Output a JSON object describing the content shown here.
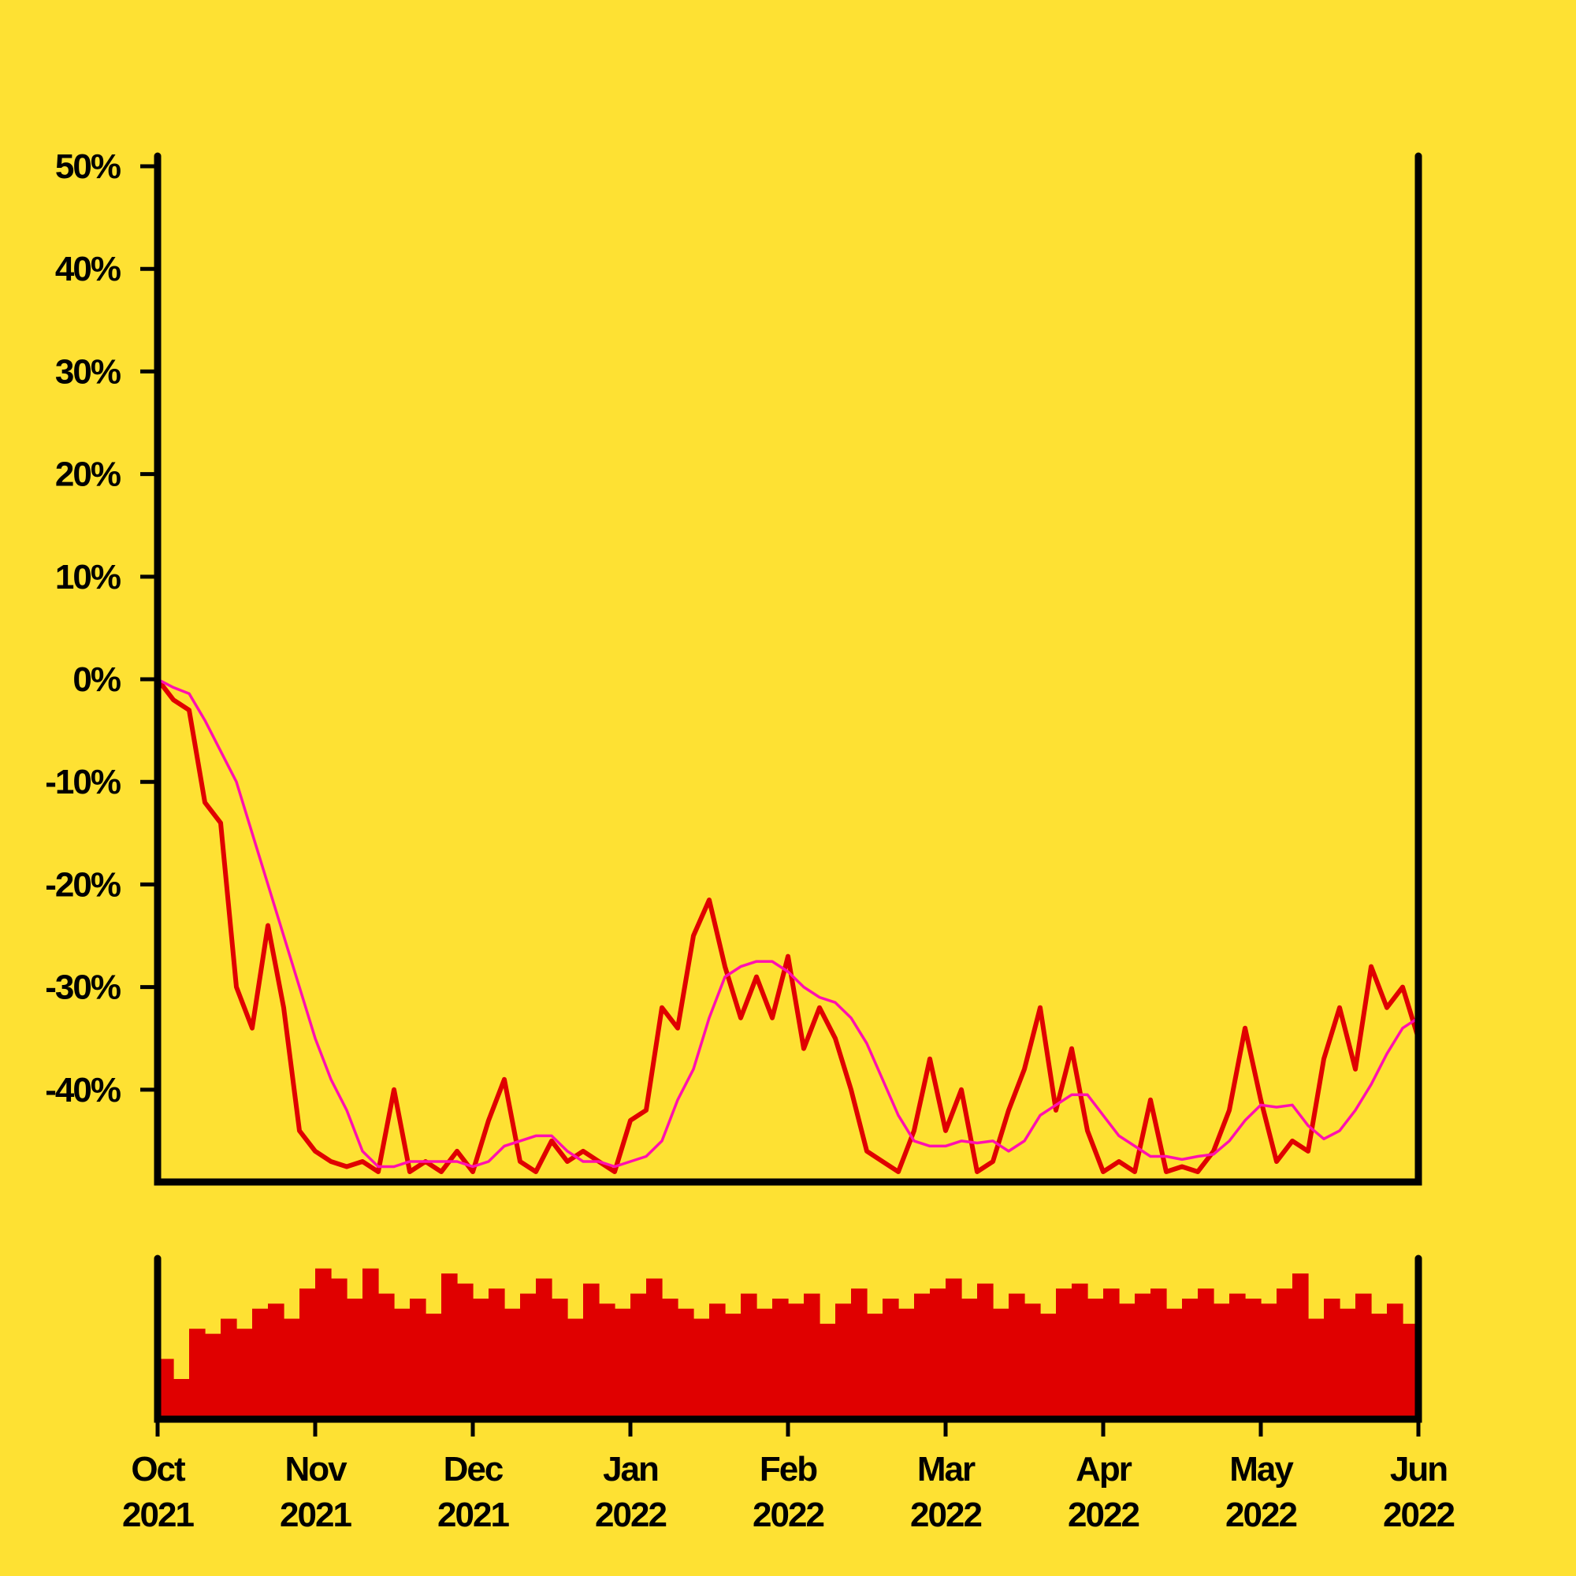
{
  "chart_data": [
    {
      "type": "line",
      "x": [
        0,
        0.1,
        0.2,
        0.3,
        0.4,
        0.5,
        0.6,
        0.7,
        0.8,
        0.9,
        1,
        1.1,
        1.2,
        1.3,
        1.4,
        1.5,
        1.6,
        1.7,
        1.8,
        1.9,
        2,
        2.1,
        2.2,
        2.3,
        2.4,
        2.5,
        2.6,
        2.7,
        2.8,
        2.9,
        3,
        3.1,
        3.2,
        3.3,
        3.4,
        3.5,
        3.6,
        3.7,
        3.8,
        3.9,
        4,
        4.1,
        4.2,
        4.3,
        4.4,
        4.5,
        4.6,
        4.7,
        4.8,
        4.9,
        5,
        5.1,
        5.2,
        5.3,
        5.4,
        5.5,
        5.6,
        5.7,
        5.8,
        5.9,
        6,
        6.1,
        6.2,
        6.3,
        6.4,
        6.5,
        6.6,
        6.7,
        6.8,
        6.9,
        7,
        7.1,
        7.2,
        7.3,
        7.4,
        7.5,
        7.6,
        7.7,
        7.8,
        7.9,
        8
      ],
      "series": [
        {
          "color": "#e00000",
          "width": 6,
          "values": [
            0,
            -2,
            -3,
            -12,
            -14,
            -30,
            -34,
            -24,
            -32,
            -44,
            -46,
            -47,
            -47.5,
            -47,
            -48,
            -40,
            -48,
            -47,
            -48,
            -46,
            -48,
            -43,
            -39,
            -47,
            -48,
            -45,
            -47,
            -46,
            -47,
            -48,
            -43,
            -42,
            -32,
            -34,
            -25,
            -21.5,
            -28,
            -33,
            -29,
            -33,
            -27,
            -36,
            -32,
            -35,
            -40,
            -46,
            -47,
            -48,
            -44,
            -37,
            -44,
            -40,
            -48,
            -47,
            -42,
            -38,
            -32,
            -42,
            -36,
            -44,
            -48,
            -47,
            -48,
            -41,
            -48,
            -47.5,
            -48,
            -46,
            -42,
            -34,
            -41,
            -47,
            -45,
            -46,
            -37,
            -32,
            -38,
            -28,
            -32,
            -30,
            -35
          ]
        },
        {
          "color": "#ff10b0",
          "width": 3.5,
          "values": [
            0,
            -0.8,
            -1.4,
            -4,
            -7,
            -10,
            -15,
            -20,
            -25,
            -30,
            -35,
            -39,
            -42,
            -46,
            -47.5,
            -47.5,
            -47,
            -47,
            -47,
            -47,
            -47.5,
            -47,
            -45.5,
            -45,
            -44.5,
            -44.5,
            -46,
            -47,
            -47,
            -47.5,
            -47,
            -46.5,
            -45,
            -41,
            -38,
            -33,
            -29,
            -28,
            -27.5,
            -27.5,
            -28.5,
            -30,
            -31,
            -31.5,
            -33,
            -35.5,
            -39,
            -42.5,
            -45,
            -45.5,
            -45.5,
            -45,
            -45.2,
            -45,
            -46,
            -45,
            -42.5,
            -41.5,
            -40.5,
            -40.5,
            -42.5,
            -44.5,
            -45.5,
            -46.5,
            -46.5,
            -46.8,
            -46.5,
            -46.3,
            -45,
            -43,
            -41.5,
            -41.7,
            -41.5,
            -43.5,
            -44.8,
            -44,
            -42,
            -39.5,
            -36.5,
            -34,
            -33
          ]
        }
      ],
      "xlim": [
        0,
        8
      ],
      "ylim": [
        -49,
        51
      ],
      "yticks": [
        {
          "value": -40,
          "label": "-40%"
        },
        {
          "value": -30,
          "label": "-30%"
        },
        {
          "value": -20,
          "label": "-20%"
        },
        {
          "value": -10,
          "label": "-10%"
        },
        {
          "value": 0,
          "label": "0%"
        },
        {
          "value": 10,
          "label": "10%"
        },
        {
          "value": 20,
          "label": "20%"
        },
        {
          "value": 30,
          "label": "30%"
        },
        {
          "value": 40,
          "label": "40%"
        },
        {
          "value": 50,
          "label": "50%"
        }
      ]
    },
    {
      "type": "bar",
      "x": [
        0,
        0.1,
        0.2,
        0.3,
        0.4,
        0.5,
        0.6,
        0.7,
        0.8,
        0.9,
        1,
        1.1,
        1.2,
        1.3,
        1.4,
        1.5,
        1.6,
        1.7,
        1.8,
        1.9,
        2,
        2.1,
        2.2,
        2.3,
        2.4,
        2.5,
        2.6,
        2.7,
        2.8,
        2.9,
        3,
        3.1,
        3.2,
        3.3,
        3.4,
        3.5,
        3.6,
        3.7,
        3.8,
        3.9,
        4,
        4.1,
        4.2,
        4.3,
        4.4,
        4.5,
        4.6,
        4.7,
        4.8,
        4.9,
        5,
        5.1,
        5.2,
        5.3,
        5.4,
        5.5,
        5.6,
        5.7,
        5.8,
        5.9,
        6,
        6.1,
        6.2,
        6.3,
        6.4,
        6.5,
        6.6,
        6.7,
        6.8,
        6.9,
        7,
        7.1,
        7.2,
        7.3,
        7.4,
        7.5,
        7.6,
        7.7,
        7.8,
        7.9
      ],
      "color": "#e00000",
      "values": [
        60,
        40,
        90,
        85,
        100,
        90,
        110,
        115,
        100,
        130,
        150,
        140,
        120,
        150,
        125,
        110,
        120,
        105,
        145,
        135,
        120,
        130,
        110,
        125,
        140,
        120,
        100,
        135,
        115,
        110,
        125,
        140,
        120,
        110,
        100,
        115,
        105,
        125,
        110,
        120,
        115,
        125,
        95,
        115,
        130,
        105,
        120,
        110,
        125,
        130,
        140,
        120,
        135,
        110,
        125,
        115,
        105,
        130,
        135,
        120,
        130,
        115,
        125,
        130,
        110,
        120,
        130,
        115,
        125,
        120,
        115,
        130,
        145,
        100,
        120,
        110,
        125,
        105,
        115,
        95
      ],
      "xlim": [
        0,
        8
      ],
      "ylim": [
        0,
        160
      ],
      "xticks": [
        {
          "value": 0,
          "label": "Oct 2021"
        },
        {
          "value": 1,
          "label": "Nov 2021"
        },
        {
          "value": 2,
          "label": "Dec 2021"
        },
        {
          "value": 3,
          "label": "Jan 2022"
        },
        {
          "value": 4,
          "label": "Feb 2022"
        },
        {
          "value": 5,
          "label": "Mar 2022"
        },
        {
          "value": 6,
          "label": "Apr 2022"
        },
        {
          "value": 7,
          "label": "May 2022"
        },
        {
          "value": 8,
          "label": "Jun 2022"
        }
      ]
    }
  ]
}
